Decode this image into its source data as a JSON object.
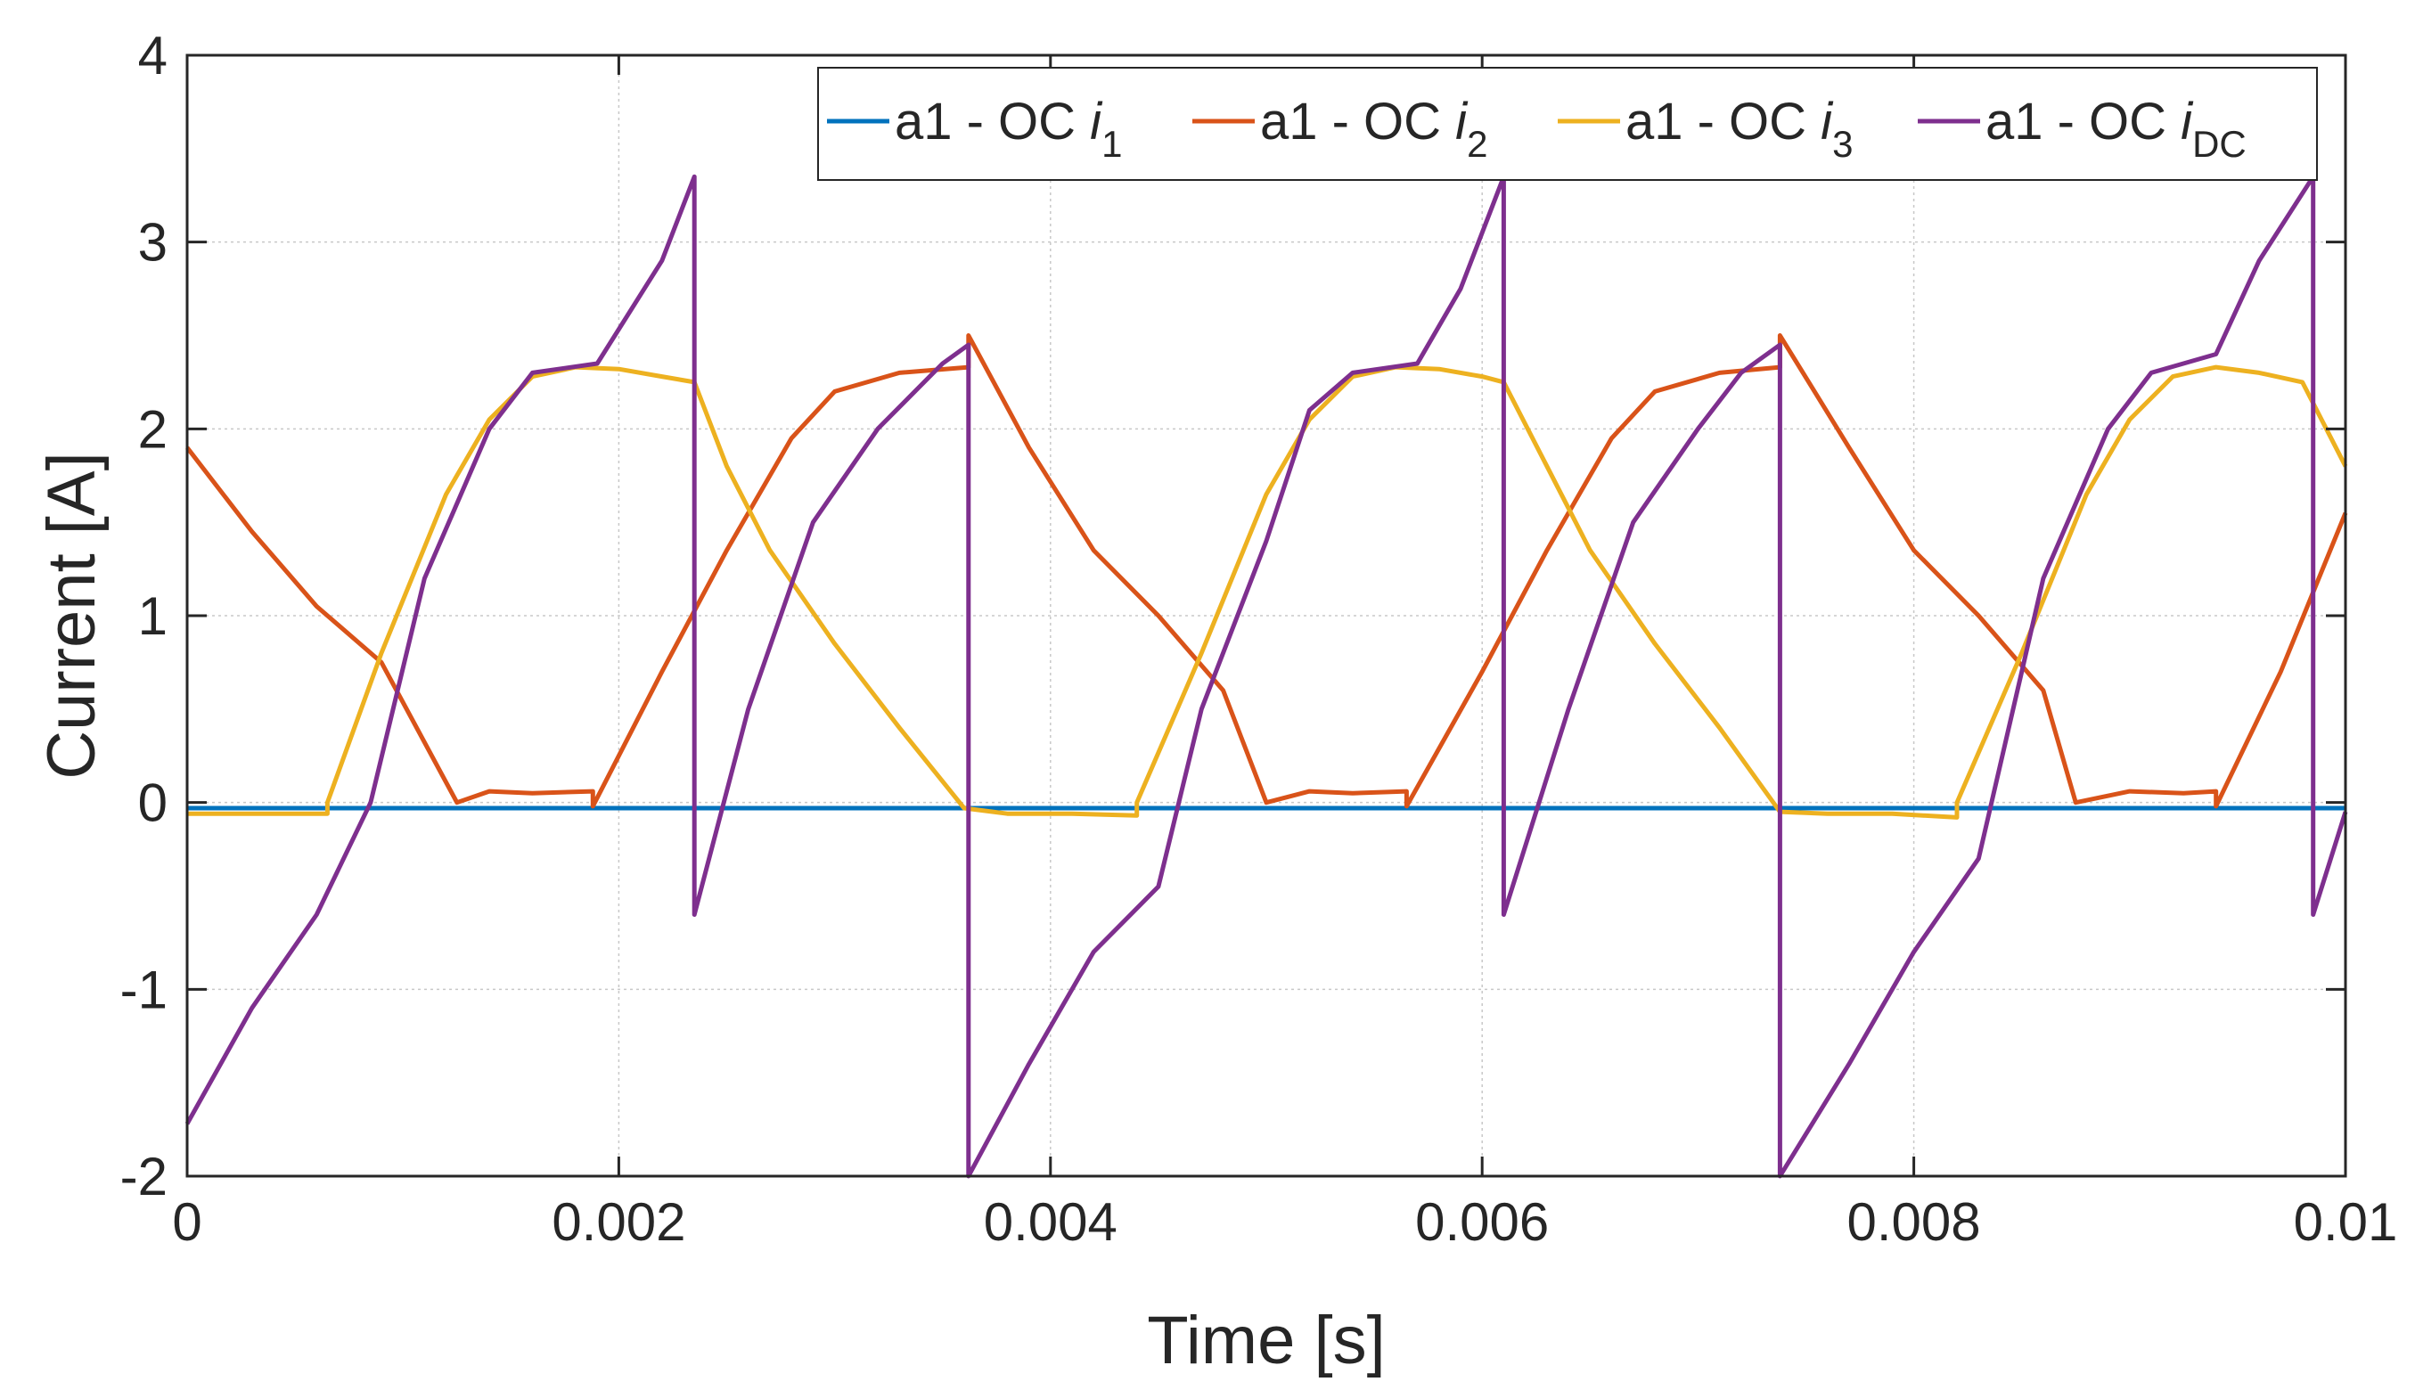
{
  "chart_data": {
    "type": "line",
    "title": "",
    "xlabel": "Time  [s]",
    "ylabel": "Current [A]",
    "xlim": [
      0,
      0.01
    ],
    "ylim": [
      -2,
      4
    ],
    "x_ticks": [
      0,
      0.002,
      0.004,
      0.006,
      0.008,
      0.01
    ],
    "x_tick_labels": [
      "0",
      "0.002",
      "0.004",
      "0.006",
      "0.008",
      "0.01"
    ],
    "y_ticks": [
      -2,
      -1,
      0,
      1,
      2,
      3,
      4
    ],
    "y_tick_labels": [
      "-2",
      "-1",
      "0",
      "1",
      "2",
      "3",
      "4"
    ],
    "grid": true,
    "legend_position": "top-right",
    "series": [
      {
        "name": "a1 - OC i1",
        "legend_prefix": "a1 - OC ",
        "legend_var": "i",
        "legend_sub": "1",
        "color": "#0072BD",
        "points": [
          [
            0,
            -0.03
          ],
          [
            0.01,
            -0.03
          ]
        ]
      },
      {
        "name": "a1 - OC i2",
        "legend_prefix": "a1 - OC ",
        "legend_var": "i",
        "legend_sub": "2",
        "color": "#D95319",
        "points": [
          [
            0,
            1.9
          ],
          [
            0.0003,
            1.45
          ],
          [
            0.0006,
            1.05
          ],
          [
            0.0009,
            0.75
          ],
          [
            0.00125,
            0.0
          ],
          [
            0.0014,
            0.06
          ],
          [
            0.0016,
            0.05
          ],
          [
            0.00188,
            0.06
          ],
          [
            0.00188,
            -0.02
          ],
          [
            0.0022,
            0.7
          ],
          [
            0.0025,
            1.35
          ],
          [
            0.0028,
            1.95
          ],
          [
            0.003,
            2.2
          ],
          [
            0.0033,
            2.3
          ],
          [
            0.00362,
            2.33
          ],
          [
            0.00362,
            2.5
          ],
          [
            0.0039,
            1.9
          ],
          [
            0.0042,
            1.35
          ],
          [
            0.0045,
            1.0
          ],
          [
            0.0048,
            0.6
          ],
          [
            0.005,
            0.0
          ],
          [
            0.0052,
            0.06
          ],
          [
            0.0054,
            0.05
          ],
          [
            0.00565,
            0.06
          ],
          [
            0.00565,
            -0.02
          ],
          [
            0.006,
            0.7
          ],
          [
            0.0063,
            1.35
          ],
          [
            0.0066,
            1.95
          ],
          [
            0.0068,
            2.2
          ],
          [
            0.0071,
            2.3
          ],
          [
            0.00738,
            2.33
          ],
          [
            0.00738,
            2.5
          ],
          [
            0.0077,
            1.9
          ],
          [
            0.008,
            1.35
          ],
          [
            0.0083,
            1.0
          ],
          [
            0.0086,
            0.6
          ],
          [
            0.00875,
            0.0
          ],
          [
            0.009,
            0.06
          ],
          [
            0.00925,
            0.05
          ],
          [
            0.0094,
            0.06
          ],
          [
            0.0094,
            -0.02
          ],
          [
            0.0097,
            0.7
          ],
          [
            0.01,
            1.55
          ]
        ]
      },
      {
        "name": "a1 - OC i3",
        "legend_prefix": "a1 - OC ",
        "legend_var": "i",
        "legend_sub": "3",
        "color": "#EDB120",
        "points": [
          [
            0,
            -0.06
          ],
          [
            0.0003,
            -0.06
          ],
          [
            0.00065,
            -0.06
          ],
          [
            0.00065,
            0.0
          ],
          [
            0.0009,
            0.8
          ],
          [
            0.0012,
            1.65
          ],
          [
            0.0014,
            2.05
          ],
          [
            0.0016,
            2.28
          ],
          [
            0.0018,
            2.33
          ],
          [
            0.002,
            2.32
          ],
          [
            0.0022,
            2.28
          ],
          [
            0.00235,
            2.25
          ],
          [
            0.0025,
            1.8
          ],
          [
            0.0027,
            1.35
          ],
          [
            0.003,
            0.85
          ],
          [
            0.0033,
            0.4
          ],
          [
            0.0036,
            -0.03
          ],
          [
            0.0038,
            -0.06
          ],
          [
            0.0041,
            -0.06
          ],
          [
            0.0044,
            -0.07
          ],
          [
            0.0044,
            0.0
          ],
          [
            0.0047,
            0.8
          ],
          [
            0.005,
            1.65
          ],
          [
            0.0052,
            2.05
          ],
          [
            0.0054,
            2.28
          ],
          [
            0.0056,
            2.33
          ],
          [
            0.0058,
            2.32
          ],
          [
            0.006,
            2.28
          ],
          [
            0.0061,
            2.25
          ],
          [
            0.0063,
            1.8
          ],
          [
            0.0065,
            1.35
          ],
          [
            0.0068,
            0.85
          ],
          [
            0.0071,
            0.4
          ],
          [
            0.00738,
            -0.05
          ],
          [
            0.0076,
            -0.06
          ],
          [
            0.0079,
            -0.06
          ],
          [
            0.0082,
            -0.08
          ],
          [
            0.0082,
            0.0
          ],
          [
            0.0085,
            0.8
          ],
          [
            0.0088,
            1.65
          ],
          [
            0.009,
            2.05
          ],
          [
            0.0092,
            2.28
          ],
          [
            0.0094,
            2.33
          ],
          [
            0.0096,
            2.3
          ],
          [
            0.0098,
            2.25
          ],
          [
            0.01,
            1.8
          ]
        ]
      },
      {
        "name": "a1 - OC iDC",
        "legend_prefix": "a1 - OC ",
        "legend_var": "i",
        "legend_sub": "DC",
        "color": "#7E2F8E",
        "points": [
          [
            0,
            -1.72
          ],
          [
            0.0003,
            -1.1
          ],
          [
            0.0006,
            -0.6
          ],
          [
            0.00085,
            0.0
          ],
          [
            0.0011,
            1.2
          ],
          [
            0.0014,
            2.0
          ],
          [
            0.0016,
            2.3
          ],
          [
            0.0019,
            2.35
          ],
          [
            0.0022,
            2.9
          ],
          [
            0.00235,
            3.35
          ],
          [
            0.00235,
            -0.6
          ],
          [
            0.0026,
            0.5
          ],
          [
            0.0029,
            1.5
          ],
          [
            0.0032,
            2.0
          ],
          [
            0.0035,
            2.35
          ],
          [
            0.00362,
            2.45
          ],
          [
            0.00362,
            -2.0
          ],
          [
            0.0039,
            -1.4
          ],
          [
            0.0042,
            -0.8
          ],
          [
            0.0045,
            -0.45
          ],
          [
            0.0047,
            0.5
          ],
          [
            0.005,
            1.4
          ],
          [
            0.0052,
            2.1
          ],
          [
            0.0054,
            2.3
          ],
          [
            0.0057,
            2.35
          ],
          [
            0.0059,
            2.75
          ],
          [
            0.0061,
            3.35
          ],
          [
            0.0061,
            -0.6
          ],
          [
            0.0064,
            0.5
          ],
          [
            0.0067,
            1.5
          ],
          [
            0.007,
            2.0
          ],
          [
            0.0072,
            2.3
          ],
          [
            0.00738,
            2.45
          ],
          [
            0.00738,
            -2.0
          ],
          [
            0.0077,
            -1.4
          ],
          [
            0.008,
            -0.8
          ],
          [
            0.0083,
            -0.3
          ],
          [
            0.0086,
            1.2
          ],
          [
            0.0089,
            2.0
          ],
          [
            0.0091,
            2.3
          ],
          [
            0.0094,
            2.4
          ],
          [
            0.0096,
            2.9
          ],
          [
            0.00985,
            3.35
          ],
          [
            0.00985,
            -0.6
          ],
          [
            0.01,
            -0.05
          ]
        ]
      }
    ]
  }
}
